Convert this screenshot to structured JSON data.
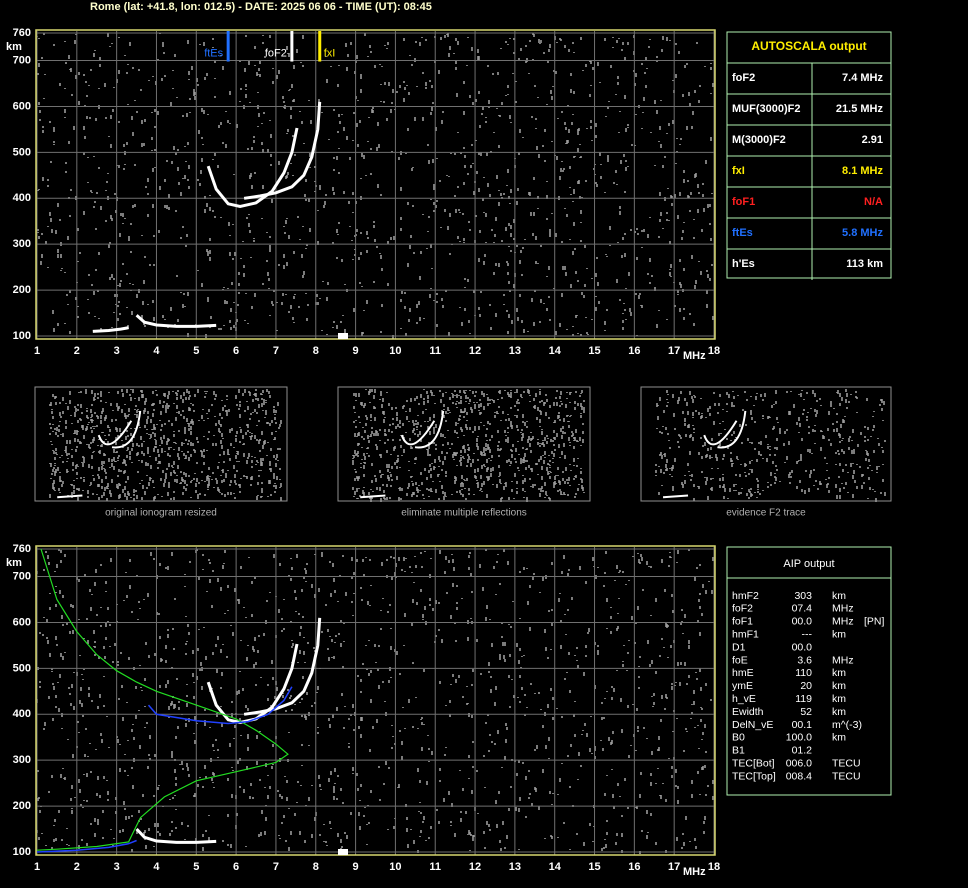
{
  "title": "Rome (lat: +41.8, lon: 012.5) - DATE: 2025 06 06 - TIME (UT): 08:45",
  "chart_data": [
    {
      "type": "ionogram",
      "x_label": "MHz",
      "y_label": "km",
      "xlim": [
        1,
        18
      ],
      "ylim": [
        100,
        760
      ],
      "xticks": [
        1,
        2,
        3,
        4,
        5,
        6,
        7,
        8,
        9,
        10,
        11,
        12,
        13,
        14,
        15,
        16,
        17,
        18
      ],
      "yticks": [
        100,
        200,
        300,
        400,
        500,
        600,
        700,
        760
      ],
      "grid": true,
      "markers": [
        {
          "label": "ftEs",
          "value": 5.8,
          "color": "#2070ff",
          "side": "left"
        },
        {
          "label": "foF2",
          "value": 7.4,
          "color": "#ffffff",
          "side": "left"
        },
        {
          "label": "fxI",
          "value": 8.1,
          "color": "#ffee00",
          "side": "right"
        }
      ],
      "series": [
        {
          "color": "#ffffff",
          "x": [
            2.4,
            2.8,
            3.1,
            3.3,
            null,
            3.5,
            3.7,
            4.0,
            4.5,
            5.0,
            5.5
          ],
          "values": [
            110,
            112,
            115,
            118,
            null,
            145,
            130,
            124,
            121,
            121,
            123
          ]
        },
        {
          "color": "#ffffff",
          "x": [
            5.3,
            5.5,
            5.8,
            6.1,
            6.5,
            6.9,
            7.2,
            7.4,
            7.53
          ],
          "values": [
            470,
            420,
            388,
            382,
            390,
            415,
            455,
            500,
            553
          ]
        },
        {
          "color": "#ffffff",
          "x": [
            6.2,
            6.6,
            7.0,
            7.4,
            7.7,
            7.9,
            8.05,
            8.1
          ],
          "values": [
            400,
            405,
            412,
            425,
            450,
            490,
            550,
            610
          ]
        }
      ]
    },
    {
      "type": "ionogram",
      "x_label": "MHz",
      "y_label": "km",
      "xlim": [
        1,
        18
      ],
      "ylim": [
        100,
        760
      ],
      "xticks": [
        1,
        2,
        3,
        4,
        5,
        6,
        7,
        8,
        9,
        10,
        11,
        12,
        13,
        14,
        15,
        16,
        17,
        18
      ],
      "yticks": [
        100,
        200,
        300,
        400,
        500,
        600,
        700,
        760
      ],
      "grid": true,
      "series": [
        {
          "color": "#ffffff",
          "x": [
            3.5,
            3.7,
            4.0,
            4.5,
            5.0,
            5.5
          ],
          "values": [
            150,
            132,
            124,
            121,
            121,
            123
          ]
        },
        {
          "color": "#ffffff",
          "x": [
            5.3,
            5.5,
            5.8,
            6.1,
            6.5,
            6.9,
            7.2,
            7.4,
            7.53
          ],
          "values": [
            470,
            420,
            388,
            382,
            390,
            415,
            455,
            500,
            553
          ]
        },
        {
          "color": "#ffffff",
          "x": [
            6.2,
            6.6,
            7.0,
            7.4,
            7.7,
            7.9,
            8.05,
            8.1
          ],
          "values": [
            400,
            405,
            412,
            425,
            450,
            490,
            550,
            610
          ]
        },
        {
          "color": "#22dd22",
          "width": 1.2,
          "x": [
            1.1,
            1.5,
            2.0,
            2.5,
            3.0,
            3.5,
            4.0,
            5.0,
            6.0,
            6.5,
            7.0,
            7.3,
            7.0,
            6.0,
            5.0,
            4.2,
            3.6,
            3.4,
            3.3,
            2.5,
            1.5,
            1.0
          ],
          "values": [
            760,
            650,
            580,
            530,
            495,
            470,
            450,
            420,
            390,
            365,
            335,
            313,
            295,
            275,
            255,
            220,
            175,
            140,
            122,
            112,
            106,
            104
          ]
        },
        {
          "color": "#2040ff",
          "width": 1.5,
          "x": [
            1.0,
            2.0,
            2.8,
            3.3,
            3.5,
            null,
            3.8,
            4.0,
            5.0,
            5.8,
            6.3,
            6.8,
            7.2,
            7.4
          ],
          "values": [
            100,
            104,
            110,
            118,
            125,
            null,
            420,
            400,
            386,
            380,
            384,
            400,
            430,
            460
          ]
        }
      ]
    }
  ],
  "autoscala": {
    "title": "AUTOSCALA output",
    "rows": [
      {
        "label": "foF2",
        "value": "7.4 MHz",
        "color": "#ffffff"
      },
      {
        "label": "MUF(3000)F2",
        "value": "21.5 MHz",
        "color": "#ffffff"
      },
      {
        "label": "M(3000)F2",
        "value": "2.91",
        "color": "#ffffff"
      },
      {
        "label": "fxI",
        "value": "8.1 MHz",
        "color": "#ffee00"
      },
      {
        "label": "foF1",
        "value": "N/A",
        "color": "#ff2020"
      },
      {
        "label": "ftEs",
        "value": "5.8 MHz",
        "color": "#2070ff"
      },
      {
        "label": "h'Es",
        "value": "113    km",
        "color": "#ffffff"
      }
    ]
  },
  "thumbnails": [
    "original ionogram resized",
    "eliminate multiple reflections",
    "evidence F2 trace"
  ],
  "aip": {
    "title": "AIP output",
    "rows": [
      [
        "hmF2",
        "303",
        "km"
      ],
      [
        "foF2",
        "07.4",
        "MHz"
      ],
      [
        "foF1",
        "00.0",
        "MHz",
        "[PN]"
      ],
      [
        "hmF1",
        "---",
        "km"
      ],
      [
        "D1",
        "00.0"
      ],
      [
        "foE",
        "3.6",
        "MHz"
      ],
      [
        "hmE",
        "110",
        "km"
      ],
      [
        "ymE",
        "20",
        "km"
      ],
      [
        "h_vE",
        "119",
        "km"
      ],
      [
        "Ewidth",
        "52",
        "km"
      ],
      [
        "DelN_vE",
        "00.1",
        "m^(-3)"
      ],
      [
        "B0",
        "100.0",
        "km"
      ],
      [
        "B1",
        "01.2"
      ],
      [
        "TEC[Bot]",
        "006.0",
        "TECU"
      ],
      [
        "TEC[Top]",
        "008.4",
        "TECU"
      ]
    ]
  }
}
